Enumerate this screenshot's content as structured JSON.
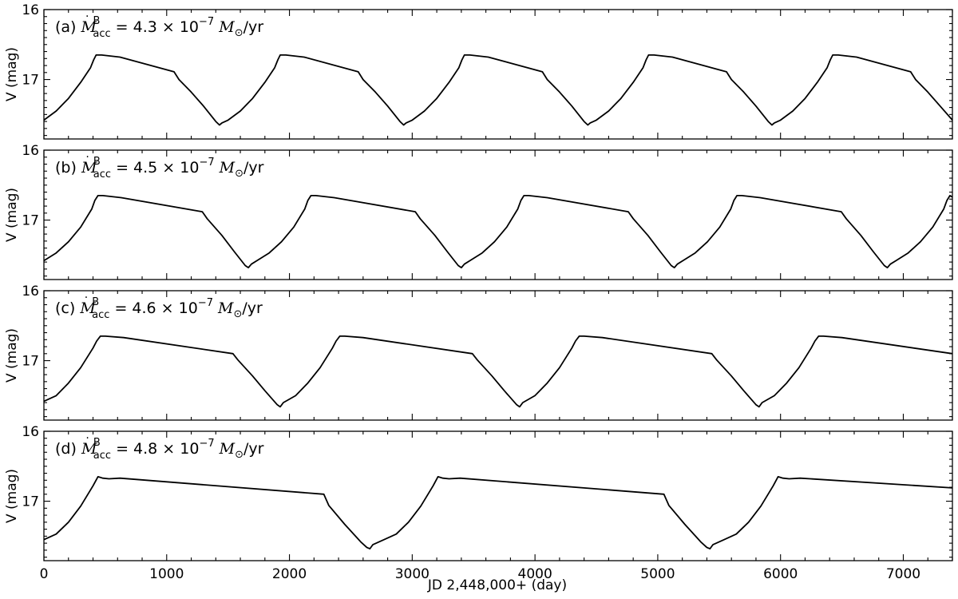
{
  "chart_data": {
    "type": "line",
    "layout": "4 vertically stacked panels sharing x-axis",
    "xlabel": "JD 2,448,000+ (day)",
    "ylabel": "V (mag)",
    "xlim": [
      0,
      7400
    ],
    "ylim_each_panel": [
      17.85,
      16.0
    ],
    "y_inverted": true,
    "xticks": [
      0,
      1000,
      2000,
      3000,
      4000,
      5000,
      6000,
      7000
    ],
    "xtick_labels": [
      "0",
      "1000",
      "2000",
      "3000",
      "4000",
      "5000",
      "6000",
      "7000"
    ],
    "yticks": [
      16,
      17
    ],
    "ytick_labels": [
      "16",
      "17"
    ],
    "grid": false,
    "legend": "none",
    "line_color": "#000000",
    "panels": [
      {
        "id": "a",
        "label_prefix": "(a)",
        "label_mid": "= 4.3 × 10",
        "label_exp": "−7",
        "label_unit": "/yr",
        "period_days": 1500,
        "values": {
          "x": [
            0,
            100,
            200,
            300,
            380,
            405,
            425,
            470,
            620,
            1060,
            1100,
            1200,
            1300,
            1400,
            1430,
            1450,
            1500,
            1600,
            1700,
            1800,
            1880,
            1905,
            1925,
            1970,
            2120,
            2560,
            2600,
            2700,
            2800,
            2900,
            2930,
            2950,
            3000,
            3100,
            3200,
            3300,
            3380,
            3405,
            3425,
            3470,
            3620,
            4060,
            4100,
            4200,
            4300,
            4400,
            4430,
            4450,
            4500,
            4600,
            4700,
            4800,
            4880,
            4905,
            4925,
            4970,
            5120,
            5560,
            5600,
            5700,
            5800,
            5900,
            5930,
            5950,
            6000,
            6100,
            6200,
            6300,
            6380,
            6405,
            6425,
            6470,
            6620,
            7060,
            7100,
            7200,
            7300,
            7400
          ],
          "y": [
            17.58,
            17.45,
            17.27,
            17.04,
            16.83,
            16.72,
            16.65,
            16.65,
            16.68,
            16.89,
            17.0,
            17.18,
            17.38,
            17.6,
            17.65,
            17.62,
            17.58,
            17.45,
            17.27,
            17.04,
            16.83,
            16.72,
            16.65,
            16.65,
            16.68,
            16.89,
            17.0,
            17.18,
            17.38,
            17.6,
            17.65,
            17.62,
            17.58,
            17.45,
            17.27,
            17.04,
            16.83,
            16.72,
            16.65,
            16.65,
            16.68,
            16.89,
            17.0,
            17.18,
            17.38,
            17.6,
            17.65,
            17.62,
            17.58,
            17.45,
            17.27,
            17.04,
            16.83,
            16.72,
            16.65,
            16.65,
            16.68,
            16.89,
            17.0,
            17.18,
            17.38,
            17.6,
            17.65,
            17.62,
            17.58,
            17.45,
            17.27,
            17.04,
            16.83,
            16.72,
            16.65,
            16.65,
            16.68,
            16.89,
            17.0,
            17.18,
            17.38,
            17.58
          ]
        }
      },
      {
        "id": "b",
        "label_prefix": "(b)",
        "label_mid": "= 4.5 × 10",
        "label_exp": "−7",
        "label_unit": "/yr",
        "period_days": 1735,
        "values": {
          "x": [
            0,
            100,
            200,
            300,
            390,
            415,
            440,
            480,
            630,
            1290,
            1330,
            1450,
            1550,
            1640,
            1665,
            1690,
            1735,
            1835,
            1935,
            2035,
            2125,
            2150,
            2175,
            2215,
            2365,
            3025,
            3065,
            3185,
            3285,
            3375,
            3400,
            3425,
            3470,
            3570,
            3670,
            3770,
            3860,
            3885,
            3910,
            3950,
            4100,
            4760,
            4800,
            4920,
            5020,
            5110,
            5135,
            5160,
            5205,
            5305,
            5405,
            5505,
            5595,
            5620,
            5645,
            5685,
            5835,
            6495,
            6535,
            6655,
            6755,
            6845,
            6870,
            6895,
            6940,
            7040,
            7140,
            7240,
            7330,
            7355,
            7380,
            7400
          ],
          "y": [
            17.58,
            17.47,
            17.31,
            17.1,
            16.84,
            16.72,
            16.65,
            16.65,
            16.68,
            16.88,
            16.98,
            17.22,
            17.45,
            17.65,
            17.68,
            17.63,
            17.58,
            17.47,
            17.31,
            17.1,
            16.84,
            16.72,
            16.65,
            16.65,
            16.68,
            16.88,
            16.98,
            17.22,
            17.45,
            17.65,
            17.68,
            17.63,
            17.58,
            17.47,
            17.31,
            17.1,
            16.84,
            16.72,
            16.65,
            16.65,
            16.68,
            16.88,
            16.98,
            17.22,
            17.45,
            17.65,
            17.68,
            17.63,
            17.58,
            17.47,
            17.31,
            17.1,
            16.84,
            16.72,
            16.65,
            16.65,
            16.68,
            16.88,
            16.98,
            17.22,
            17.45,
            17.65,
            17.68,
            17.63,
            17.58,
            17.47,
            17.31,
            17.1,
            16.84,
            16.72,
            16.65,
            16.67
          ]
        }
      },
      {
        "id": "c",
        "label_prefix": "(c)",
        "label_mid": "= 4.6 × 10",
        "label_exp": "−7",
        "label_unit": "/yr",
        "period_days": 1950,
        "values": {
          "x": [
            0,
            100,
            200,
            300,
            400,
            430,
            460,
            500,
            650,
            1540,
            1580,
            1700,
            1800,
            1900,
            1925,
            1950,
            2050,
            2150,
            2250,
            2350,
            2380,
            2410,
            2450,
            2600,
            3490,
            3530,
            3650,
            3750,
            3850,
            3875,
            3900,
            4000,
            4100,
            4200,
            4300,
            4330,
            4360,
            4400,
            4550,
            5440,
            5480,
            5600,
            5700,
            5800,
            5825,
            5850,
            5950,
            6050,
            6150,
            6250,
            6280,
            6310,
            6350,
            6500,
            7400
          ],
          "y": [
            17.58,
            17.5,
            17.32,
            17.1,
            16.82,
            16.72,
            16.65,
            16.65,
            16.67,
            16.9,
            16.99,
            17.22,
            17.43,
            17.63,
            17.66,
            17.6,
            17.5,
            17.32,
            17.1,
            16.82,
            16.72,
            16.65,
            16.65,
            16.67,
            16.9,
            16.99,
            17.22,
            17.43,
            17.63,
            17.66,
            17.6,
            17.5,
            17.32,
            17.1,
            16.82,
            16.72,
            16.65,
            16.65,
            16.67,
            16.9,
            16.99,
            17.22,
            17.43,
            17.63,
            17.66,
            17.6,
            17.5,
            17.32,
            17.1,
            16.82,
            16.72,
            16.65,
            16.65,
            16.67,
            16.9
          ]
        }
      },
      {
        "id": "d",
        "label_prefix": "(d)",
        "label_mid": "= 4.8 × 10",
        "label_exp": "−7",
        "label_unit": "/yr",
        "period_days": 2770,
        "values": {
          "x": [
            0,
            100,
            200,
            300,
            400,
            440,
            480,
            530,
            620,
            2280,
            2320,
            2450,
            2580,
            2630,
            2655,
            2680,
            2770,
            2870,
            2970,
            3070,
            3170,
            3210,
            3250,
            3300,
            3390,
            5050,
            5090,
            5220,
            5350,
            5400,
            5425,
            5450,
            5540,
            5640,
            5740,
            5840,
            5940,
            5980,
            6020,
            6070,
            6160,
            7400
          ],
          "y": [
            17.55,
            17.47,
            17.3,
            17.07,
            16.78,
            16.65,
            16.67,
            16.68,
            16.67,
            16.9,
            17.06,
            17.33,
            17.58,
            17.66,
            17.68,
            17.62,
            17.55,
            17.47,
            17.3,
            17.07,
            16.78,
            16.65,
            16.67,
            16.68,
            16.67,
            16.9,
            17.06,
            17.33,
            17.58,
            17.66,
            17.68,
            17.62,
            17.55,
            17.47,
            17.3,
            17.07,
            16.78,
            16.65,
            16.67,
            16.68,
            16.67,
            16.81
          ]
        }
      }
    ]
  }
}
